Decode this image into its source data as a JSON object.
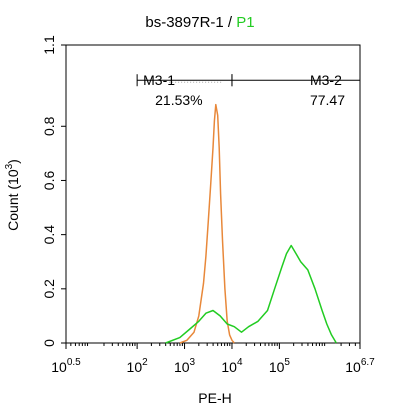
{
  "chart_data": {
    "type": "area",
    "title_main": "bs-3897R-1 / ",
    "title_gate": "P1",
    "xlabel": "PE-H",
    "ylabel_prefix": "Count (10",
    "ylabel_exp": "3",
    "ylabel_suffix": ")",
    "x_scale": "log10",
    "xlim": [
      0.5,
      6.7
    ],
    "ylim": [
      0,
      1.1
    ],
    "x_ticks": [
      {
        "base": "10",
        "exp": "0.5",
        "value": 0.5
      },
      {
        "base": "10",
        "exp": "2",
        "value": 2
      },
      {
        "base": "10",
        "exp": "3",
        "value": 3
      },
      {
        "base": "10",
        "exp": "4",
        "value": 4
      },
      {
        "base": "10",
        "exp": "5",
        "value": 5
      },
      {
        "base": "10",
        "exp": "6.7",
        "value": 6.7
      }
    ],
    "y_ticks": [
      {
        "label": "0",
        "value": 0
      },
      {
        "label": "0.2",
        "value": 0.2
      },
      {
        "label": "0.4",
        "value": 0.4
      },
      {
        "label": "0.6",
        "value": 0.6
      },
      {
        "label": "0.8",
        "value": 0.8
      },
      {
        "label": "1.1",
        "value": 1.1
      }
    ],
    "gates": [
      {
        "name": "M3-1",
        "percent": "21.53%",
        "x_start": 2.0,
        "x_end": 4.0
      },
      {
        "name": "M3-2",
        "percent": "77.47",
        "x_start": 4.0,
        "x_end": 6.7
      }
    ],
    "gate_y": 0.97,
    "series": [
      {
        "color": "#e8883a",
        "x": [
          2.9,
          3.05,
          3.2,
          3.3,
          3.4,
          3.45,
          3.5,
          3.55,
          3.6,
          3.63,
          3.66,
          3.7,
          3.73,
          3.76,
          3.8,
          3.85,
          3.9,
          3.95,
          4.0,
          4.05
        ],
        "y": [
          0.0,
          0.01,
          0.04,
          0.1,
          0.22,
          0.32,
          0.45,
          0.58,
          0.72,
          0.82,
          0.88,
          0.84,
          0.72,
          0.55,
          0.38,
          0.2,
          0.08,
          0.03,
          0.01,
          0.0
        ]
      },
      {
        "color": "#22cc22",
        "x": [
          2.6,
          2.9,
          3.1,
          3.3,
          3.45,
          3.6,
          3.75,
          3.9,
          4.05,
          4.2,
          4.35,
          4.55,
          4.75,
          4.9,
          5.05,
          5.15,
          5.25,
          5.35,
          5.45,
          5.6,
          5.75,
          5.9,
          6.0,
          6.1,
          6.2
        ],
        "y": [
          0.0,
          0.02,
          0.05,
          0.08,
          0.11,
          0.12,
          0.1,
          0.07,
          0.06,
          0.04,
          0.06,
          0.08,
          0.12,
          0.2,
          0.28,
          0.33,
          0.36,
          0.33,
          0.3,
          0.27,
          0.2,
          0.12,
          0.07,
          0.03,
          0.0
        ]
      }
    ]
  }
}
